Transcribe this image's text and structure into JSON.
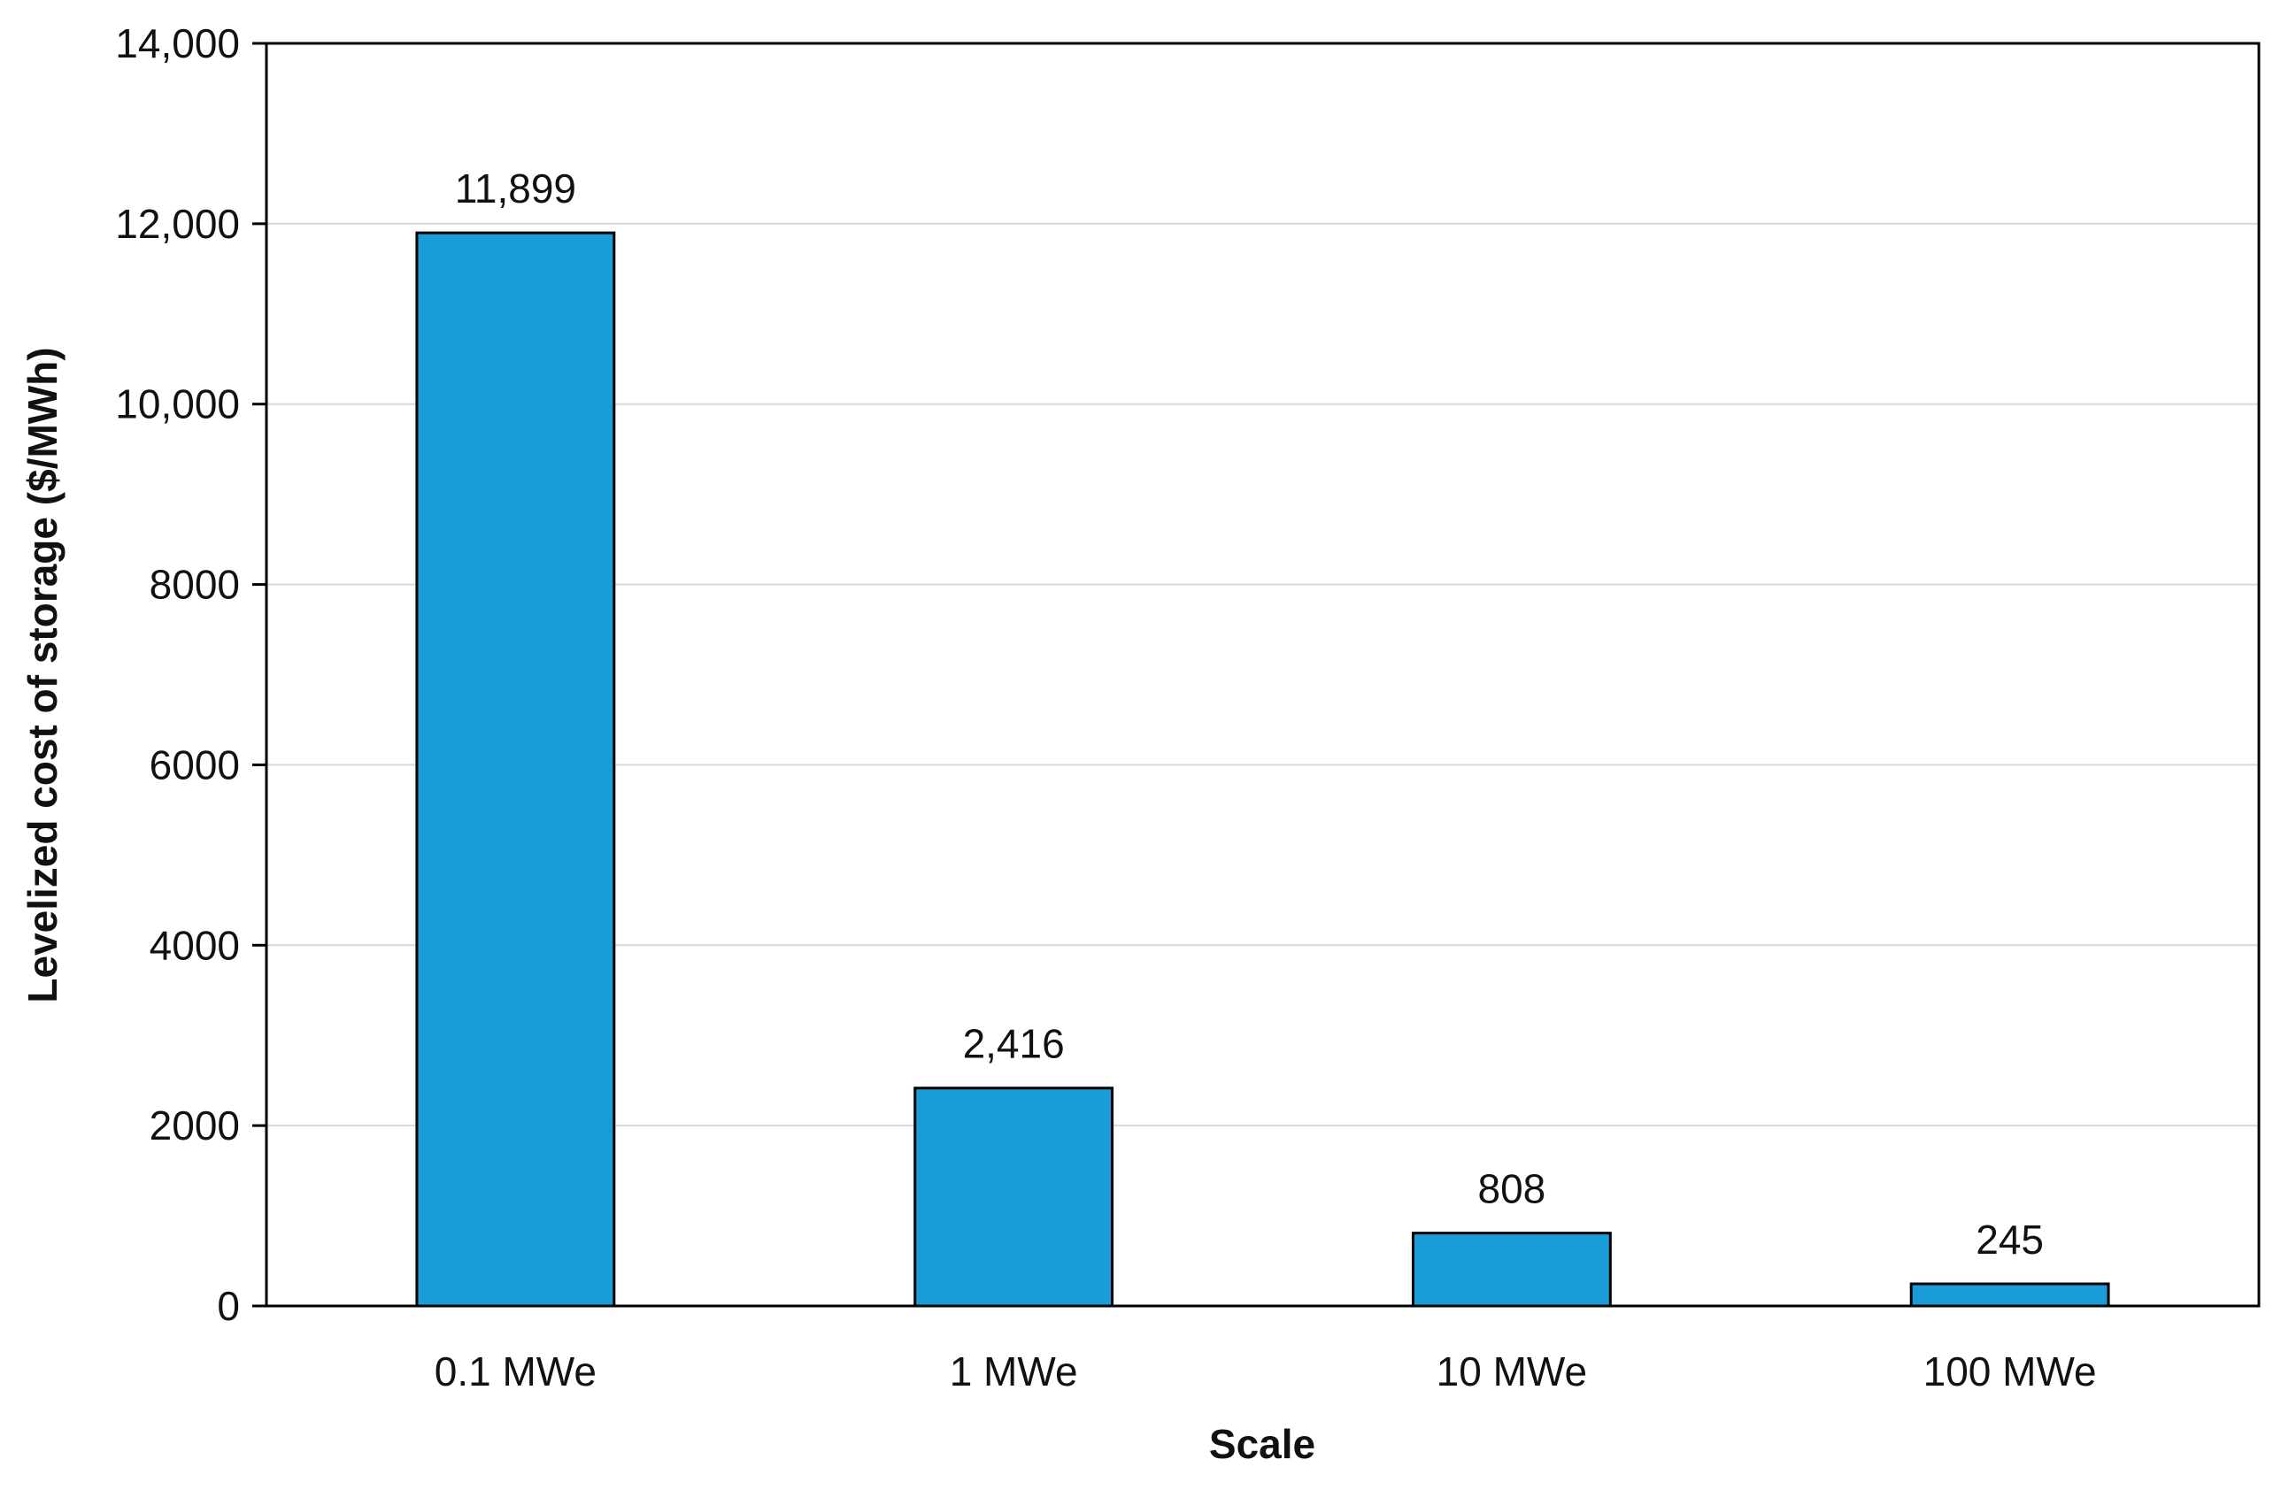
{
  "chart_data": {
    "type": "bar",
    "title": "",
    "xlabel": "Scale",
    "ylabel": "Levelized cost of storage ($/MWh)",
    "categories": [
      "0.1 MWe",
      "1 MWe",
      "10 MWe",
      "100 MWe"
    ],
    "values": [
      11899,
      2416,
      808,
      245
    ],
    "data_labels": [
      "11,899",
      "2,416",
      "808",
      "245"
    ],
    "ylim": [
      0,
      14000
    ],
    "yticks": [
      0,
      2000,
      4000,
      6000,
      8000,
      10000,
      12000,
      14000
    ],
    "ytick_labels": [
      "0",
      "2000",
      "4000",
      "6000",
      "8000",
      "10,000",
      "12,000",
      "14,000"
    ],
    "grid": true,
    "legend": "none",
    "bar_color": "#1a9cd8",
    "gridline_color": "#d9d9d9"
  }
}
